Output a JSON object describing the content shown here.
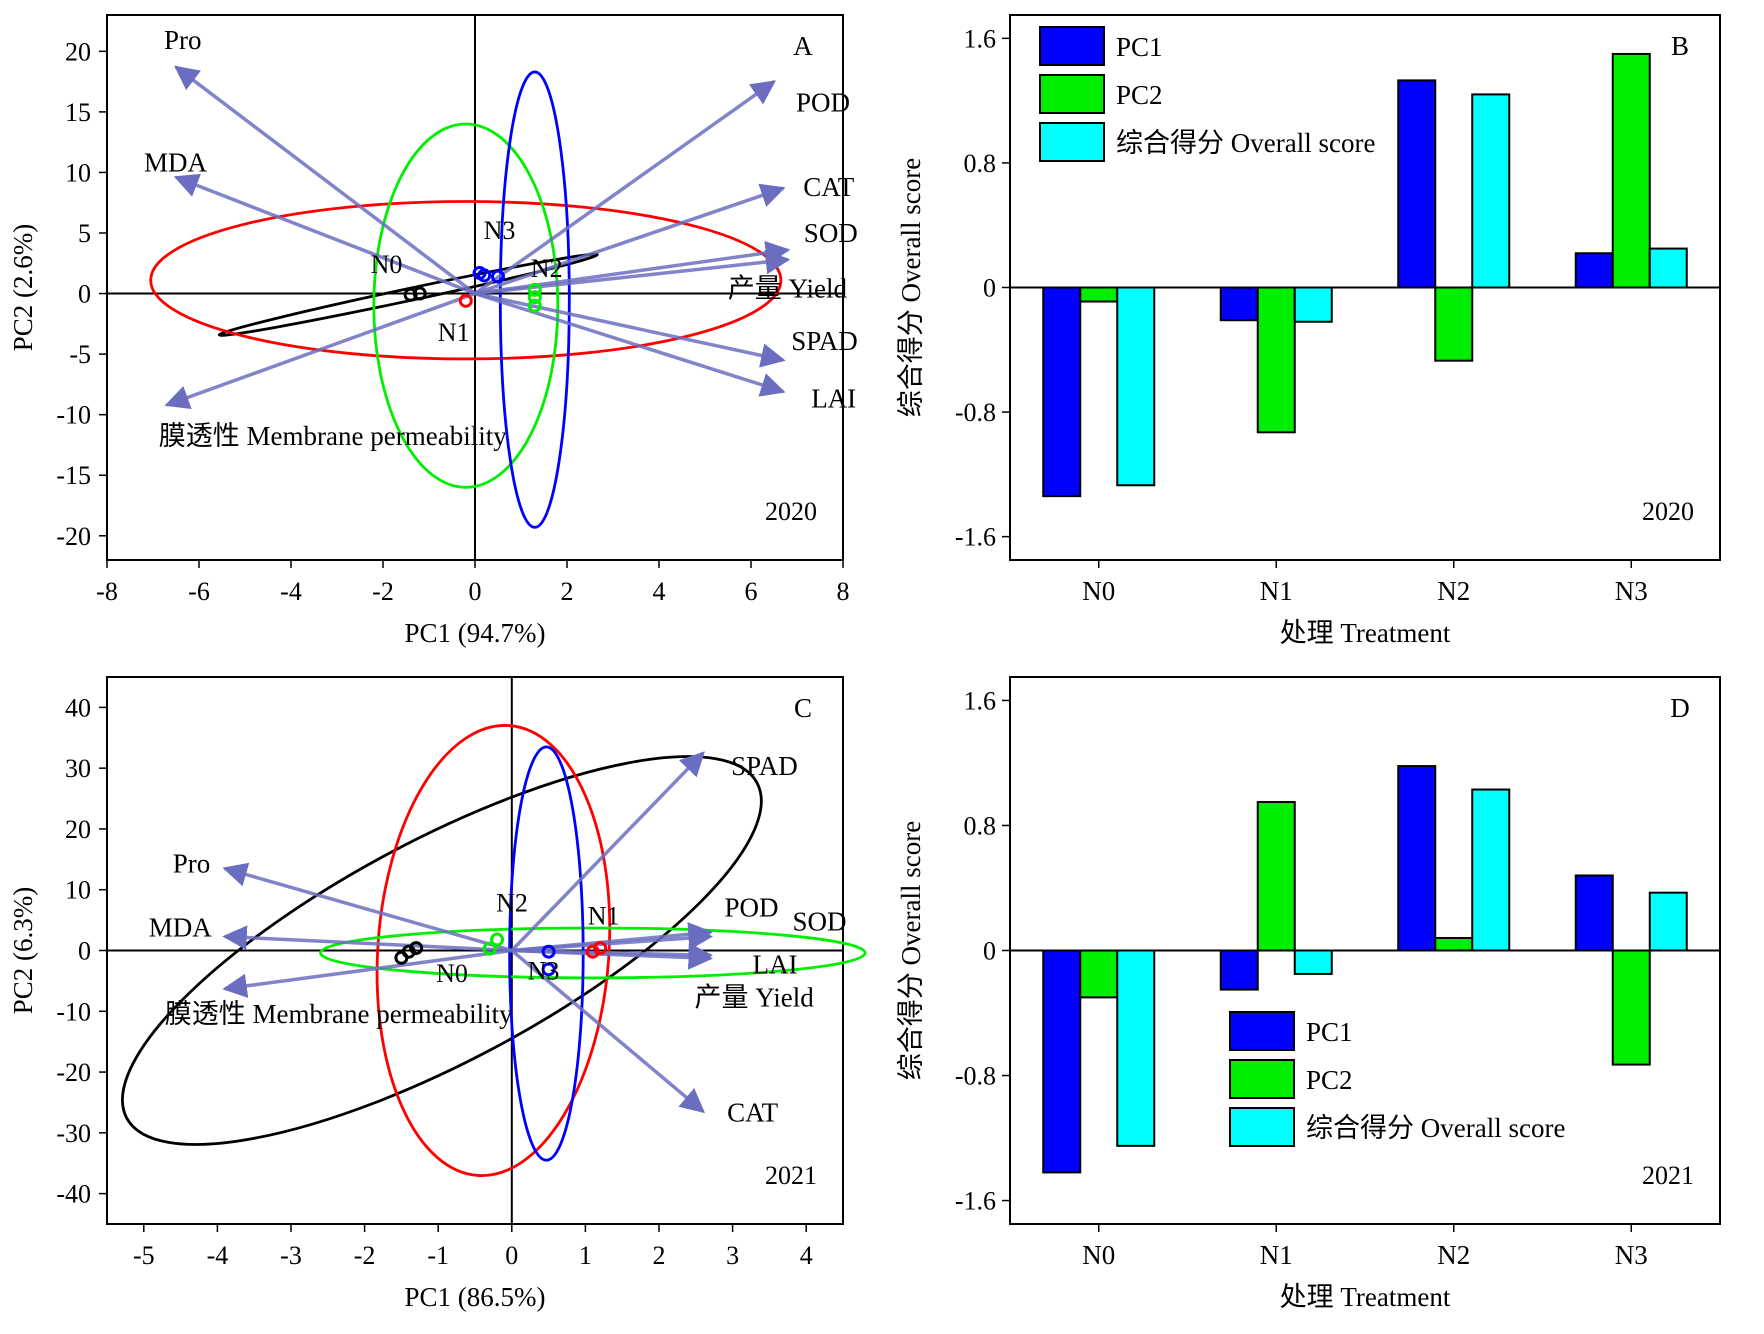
{
  "chart_data": [
    {
      "panel": "A",
      "type": "scatter",
      "note": "2020",
      "xlabel": "PC1 (94.7%)",
      "ylabel": "PC2 (2.6%)",
      "xlim": [
        -8,
        8
      ],
      "ylim": [
        -22,
        23
      ],
      "xticks": [
        -8,
        -6,
        -4,
        -2,
        0,
        2,
        4,
        6,
        8
      ],
      "yticks": [
        -20,
        -15,
        -10,
        -5,
        0,
        5,
        10,
        15,
        20
      ],
      "grid": false,
      "loadings": [
        {
          "label": "Pro",
          "x": -6.5,
          "y": 18.7
        },
        {
          "label": "MDA",
          "x": -6.5,
          "y": 9.6
        },
        {
          "label": "POD",
          "x": 6.5,
          "y": 17.5
        },
        {
          "label": "CAT",
          "x": 6.7,
          "y": 8.7
        },
        {
          "label": "SOD",
          "x": 6.8,
          "y": 3.6
        },
        {
          "label": "产量 Yield",
          "x": 6.8,
          "y": 2.8
        },
        {
          "label": "SPAD",
          "x": 6.7,
          "y": -5.5
        },
        {
          "label": "LAI",
          "x": 6.7,
          "y": -8.1
        },
        {
          "label": "膜透性 Membrane permeability",
          "x": -6.7,
          "y": -9.2
        }
      ],
      "groups": [
        {
          "name": "N0",
          "color": "#000000",
          "points": [
            [
              -1.4,
              -0.1
            ],
            [
              -1.2,
              0.0
            ]
          ],
          "ellipse": {
            "cx": -1.45,
            "cy": -0.1,
            "rx": 4.2,
            "ry": 0.5,
            "angle": -12.0
          }
        },
        {
          "name": "N1",
          "color": "#ff0000",
          "points": [
            [
              -0.2,
              -0.6
            ]
          ],
          "ellipse": {
            "cx": -0.2,
            "cy": 1.1,
            "rx": 6.85,
            "ry": 6.5,
            "angle": 0
          }
        },
        {
          "name": "N2",
          "color": "#00ee00",
          "points": [
            [
              1.3,
              -0.3
            ],
            [
              1.3,
              0.3
            ],
            [
              1.3,
              -1.0
            ]
          ],
          "ellipse": {
            "cx": -0.2,
            "cy": -1.0,
            "rx": 2.0,
            "ry": 15.0,
            "angle": 0
          }
        },
        {
          "name": "N3",
          "color": "#0000ff",
          "points": [
            [
              0.1,
              1.7
            ],
            [
              0.2,
              1.5
            ],
            [
              0.5,
              1.4
            ]
          ],
          "ellipse": {
            "cx": 1.3,
            "cy": -0.5,
            "rx": 0.75,
            "ry": 18.8,
            "angle": 0
          }
        }
      ]
    },
    {
      "panel": "B",
      "type": "bar",
      "note": "2020",
      "xlabel": "处理 Treatment",
      "ylabel": "综合得分 Overall score",
      "categories": [
        "N0",
        "N1",
        "N2",
        "N3"
      ],
      "ylim": [
        -1.75,
        1.75
      ],
      "yticks": [
        -1.6,
        -0.8,
        0,
        0.8,
        1.6
      ],
      "legend": "top-left",
      "series": [
        {
          "name": "PC1",
          "color": "#0000ff",
          "values": [
            -1.34,
            -0.21,
            1.33,
            0.22
          ]
        },
        {
          "name": "PC2",
          "color": "#00ee00",
          "values": [
            -0.09,
            -0.93,
            -0.47,
            1.5
          ]
        },
        {
          "name": "综合得分 Overall score",
          "color": "#00ffff",
          "values": [
            -1.27,
            -0.22,
            1.24,
            0.25
          ]
        }
      ]
    },
    {
      "panel": "C",
      "type": "scatter",
      "note": "2021",
      "xlabel": "PC1 (86.5%)",
      "ylabel": "PC2 (6.3%)",
      "xlim": [
        -5.5,
        4.5
      ],
      "ylim": [
        -45,
        45
      ],
      "xticks": [
        -5,
        -4,
        -3,
        -2,
        -1,
        0,
        1,
        2,
        3,
        4
      ],
      "yticks": [
        -40,
        -30,
        -20,
        -10,
        0,
        10,
        20,
        30,
        40
      ],
      "grid": false,
      "loadings": [
        {
          "label": "SPAD",
          "x": 2.6,
          "y": 32.5
        },
        {
          "label": "Pro",
          "x": -3.9,
          "y": 13.5
        },
        {
          "label": "MDA",
          "x": -3.9,
          "y": 2.3
        },
        {
          "label": "POD",
          "x": 2.7,
          "y": 3.0
        },
        {
          "label": "SOD",
          "x": 2.7,
          "y": 2.3
        },
        {
          "label": "LAI",
          "x": 2.7,
          "y": -0.8
        },
        {
          "label": "产量 Yield",
          "x": 2.7,
          "y": -1.3
        },
        {
          "label": "膜透性 Membrane permeability",
          "x": -3.9,
          "y": -6.3
        },
        {
          "label": "CAT",
          "x": 2.6,
          "y": -26.5
        }
      ],
      "groups": [
        {
          "name": "N0",
          "color": "#000000",
          "points": [
            [
              -1.3,
              0.4
            ],
            [
              -1.4,
              -0.2
            ],
            [
              -1.5,
              -1.2
            ]
          ],
          "ellipse": {
            "cx": -0.95,
            "cy": 0.0,
            "rx": 4.85,
            "ry": 18.2,
            "angle": -28
          }
        },
        {
          "name": "N1",
          "color": "#ff0000",
          "points": [
            [
              1.1,
              -0.2
            ],
            [
              1.2,
              0.4
            ]
          ],
          "ellipse": {
            "cx": -0.25,
            "cy": 0.0,
            "rx": 1.57,
            "ry": 37.1,
            "angle": 4
          }
        },
        {
          "name": "N2",
          "color": "#00ee00",
          "points": [
            [
              -0.2,
              1.8
            ],
            [
              -0.3,
              0.3
            ]
          ],
          "ellipse": {
            "cx": 1.1,
            "cy": -0.4,
            "rx": 3.7,
            "ry": 4.1,
            "angle": 0
          }
        },
        {
          "name": "N3",
          "color": "#0000ff",
          "points": [
            [
              0.5,
              -0.2
            ],
            [
              0.5,
              -3.1
            ]
          ],
          "ellipse": {
            "cx": 0.47,
            "cy": -0.5,
            "rx": 0.5,
            "ry": 34.0,
            "angle": 0
          }
        }
      ]
    },
    {
      "panel": "D",
      "type": "bar",
      "note": "2021",
      "xlabel": "处理 Treatment",
      "ylabel": "综合得分 Overall score",
      "categories": [
        "N0",
        "N1",
        "N2",
        "N3"
      ],
      "ylim": [
        -1.75,
        1.75
      ],
      "yticks": [
        -1.6,
        -0.8,
        0,
        0.8,
        1.6
      ],
      "legend": "bottom-center",
      "series": [
        {
          "name": "PC1",
          "color": "#0000ff",
          "values": [
            -1.42,
            -0.25,
            1.18,
            0.48
          ]
        },
        {
          "name": "PC2",
          "color": "#00ee00",
          "values": [
            -0.3,
            0.95,
            0.08,
            -0.73
          ]
        },
        {
          "name": "综合得分 Overall score",
          "color": "#00ffff",
          "values": [
            -1.25,
            -0.15,
            1.03,
            0.37
          ]
        }
      ]
    }
  ]
}
